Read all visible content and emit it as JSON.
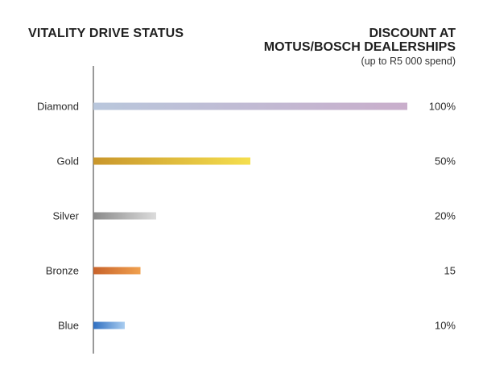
{
  "header": {
    "left_title": "VITALITY DRIVE STATUS",
    "right_title_line1": "DISCOUNT AT",
    "right_title_line2": "MOTUS/BOSCH DEALERSHIPS",
    "right_subtitle": "(up to R5 000 spend)"
  },
  "chart_data": {
    "type": "bar",
    "orientation": "horizontal",
    "categories": [
      "Diamond",
      "Gold",
      "Silver",
      "Bronze",
      "Blue"
    ],
    "values": [
      100,
      50,
      20,
      15,
      10
    ],
    "value_labels": [
      "100%",
      "50%",
      "20%",
      "15",
      "10%"
    ],
    "xlim": [
      0,
      100
    ],
    "grid": false,
    "bar_gradients": [
      [
        "#b9c7dc",
        "#c9aecb"
      ],
      [
        "#c9962b",
        "#f5df4e"
      ],
      [
        "#8a8a8a",
        "#dcdcdc"
      ],
      [
        "#c8632b",
        "#f0a04e"
      ],
      [
        "#2f6fc1",
        "#a9cdf0"
      ]
    ]
  }
}
